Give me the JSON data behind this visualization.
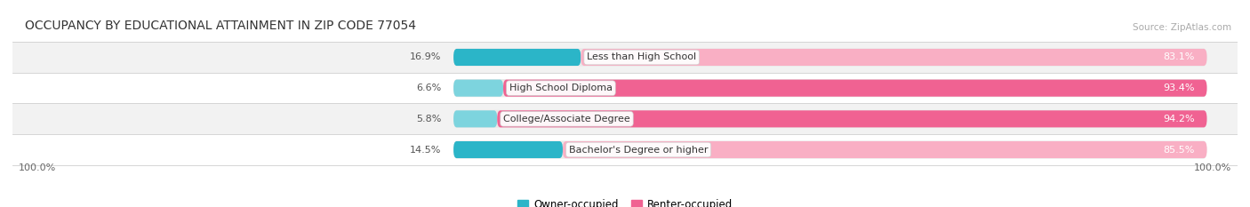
{
  "title": "OCCUPANCY BY EDUCATIONAL ATTAINMENT IN ZIP CODE 77054",
  "source": "Source: ZipAtlas.com",
  "categories": [
    "Less than High School",
    "High School Diploma",
    "College/Associate Degree",
    "Bachelor's Degree or higher"
  ],
  "owner_pct": [
    16.9,
    6.6,
    5.8,
    14.5
  ],
  "renter_pct": [
    83.1,
    93.4,
    94.2,
    85.5
  ],
  "owner_colors": [
    "#2bb5c8",
    "#7dd4de",
    "#7dd4de",
    "#2bb5c8"
  ],
  "renter_colors": [
    "#f9afc4",
    "#f06292",
    "#f06292",
    "#f9afc4"
  ],
  "track_color": "#e8e8e8",
  "row_bg_colors": [
    "#f2f2f2",
    "#ffffff",
    "#f2f2f2",
    "#ffffff"
  ],
  "owner_label": "Owner-occupied",
  "renter_label": "Renter-occupied",
  "owner_legend_color": "#2bb5c8",
  "renter_legend_color": "#f06292",
  "left_axis_label": "100.0%",
  "right_axis_label": "100.0%",
  "title_fontsize": 10,
  "source_fontsize": 7.5,
  "bar_label_fontsize": 8,
  "legend_fontsize": 8.5,
  "axis_label_fontsize": 8
}
